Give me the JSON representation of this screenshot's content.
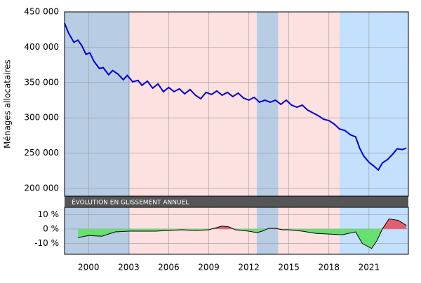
{
  "chart_data": [
    {
      "type": "line",
      "ylabel": "Ménages allocataires",
      "xlim": [
        1998.2,
        2023.95
      ],
      "ylim": [
        189000,
        450000
      ],
      "yticks": [
        {
          "value": 200000,
          "label": "200 000"
        },
        {
          "value": 250000,
          "label": "250 000"
        },
        {
          "value": 300000,
          "label": "300 000"
        },
        {
          "value": 350000,
          "label": "350 000"
        },
        {
          "value": 400000,
          "label": "400 000"
        },
        {
          "value": 450000,
          "label": "450 000"
        }
      ],
      "grid": true,
      "periods": [
        {
          "start": 1998.2,
          "end": 2003.1,
          "color": "#b8cce4"
        },
        {
          "start": 2003.1,
          "end": 2012.6,
          "color": "#fde0e0"
        },
        {
          "start": 2012.6,
          "end": 2014.2,
          "color": "#b8cce4"
        },
        {
          "start": 2014.2,
          "end": 2018.8,
          "color": "#fde0e0"
        },
        {
          "start": 2018.8,
          "end": 2023.95,
          "color": "#c4e0ff"
        }
      ],
      "x": [
        1998.2,
        1998.5,
        1998.9,
        1999.2,
        1999.5,
        1999.8,
        2000.1,
        2000.4,
        2000.8,
        2001.1,
        2001.5,
        2001.8,
        2002.2,
        2002.6,
        2002.9,
        2003.3,
        2003.7,
        2004.0,
        2004.4,
        2004.8,
        2005.2,
        2005.6,
        2006.0,
        2006.4,
        2006.8,
        2007.2,
        2007.6,
        2008.0,
        2008.4,
        2008.8,
        2009.2,
        2009.6,
        2010.0,
        2010.4,
        2010.8,
        2011.2,
        2011.6,
        2012.0,
        2012.4,
        2012.8,
        2013.2,
        2013.6,
        2014.0,
        2014.4,
        2014.8,
        2015.2,
        2015.6,
        2016.0,
        2016.4,
        2016.8,
        2017.2,
        2017.6,
        2018.0,
        2018.4,
        2018.8,
        2019.2,
        2019.6,
        2020.0,
        2020.3,
        2020.6,
        2021.0,
        2021.4,
        2021.7,
        2022.0,
        2022.4,
        2022.8,
        2023.1,
        2023.5,
        2023.8
      ],
      "series": [
        {
          "color": "#0000cc",
          "values": [
            434000,
            420000,
            407000,
            410000,
            402000,
            390000,
            392000,
            380000,
            370000,
            371000,
            361000,
            367000,
            362000,
            354000,
            360000,
            351000,
            353000,
            346000,
            352000,
            342000,
            348000,
            337000,
            343000,
            337000,
            341000,
            334000,
            340000,
            332000,
            327000,
            336000,
            333000,
            338000,
            332000,
            336000,
            330000,
            335000,
            328000,
            325000,
            329000,
            322000,
            325000,
            322000,
            325000,
            319000,
            325000,
            318000,
            315000,
            318000,
            311000,
            307000,
            303000,
            298000,
            296000,
            291000,
            284000,
            282000,
            276000,
            273000,
            257000,
            246000,
            237000,
            231000,
            226000,
            236000,
            241000,
            249000,
            256000,
            255000,
            257000
          ]
        }
      ]
    },
    {
      "type": "area",
      "title": "ÉVOLUTION EN GLISSEMENT ANNUEL",
      "xlim": [
        1998.2,
        2023.95
      ],
      "xticks": [
        2000,
        2003,
        2006,
        2009,
        2012,
        2015,
        2018,
        2021
      ],
      "ylim": [
        -17.5,
        15
      ],
      "yticks": [
        {
          "value": -10,
          "label": "-10 %"
        },
        {
          "value": 0,
          "label": "0 %"
        },
        {
          "value": 10,
          "label": "10 %"
        }
      ],
      "positive_color": "#e06070",
      "negative_color": "#66e070",
      "x": [
        1999.2,
        2000,
        2001,
        2002,
        2003,
        2004,
        2005,
        2006,
        2007,
        2008,
        2009,
        2010,
        2010.5,
        2011,
        2012,
        2012.6,
        2013,
        2013.5,
        2014,
        2014.5,
        2015,
        2016,
        2017,
        2018,
        2019,
        2020,
        2020.5,
        2021.2,
        2021.6,
        2022,
        2022.5,
        2023.2,
        2023.8
      ],
      "values": [
        -6,
        -4.5,
        -5,
        -2,
        -1.5,
        -1.5,
        -1.5,
        -1,
        -0.5,
        -1,
        -0.5,
        2,
        1.5,
        -0.5,
        -1.5,
        -2.5,
        -1.5,
        0.5,
        0.5,
        -0.5,
        -0.5,
        -1.5,
        -3,
        -3.5,
        -4,
        -2,
        -10,
        -13.5,
        -8,
        0,
        7,
        6,
        2.5
      ]
    }
  ]
}
